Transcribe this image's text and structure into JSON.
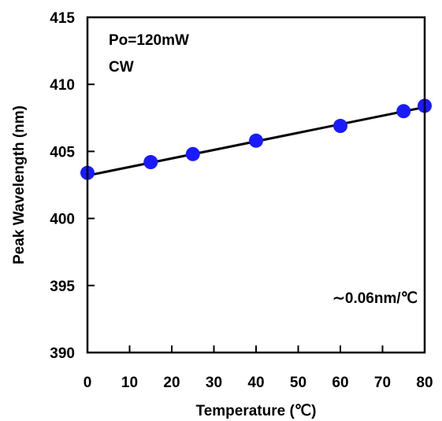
{
  "chart_data": {
    "type": "scatter",
    "title": "",
    "xlabel": "Temperature (℃)",
    "ylabel": "Peak Wavelength (nm)",
    "xlim": [
      0,
      80
    ],
    "ylim": [
      390,
      415
    ],
    "x_ticks": [
      0,
      10,
      20,
      30,
      40,
      50,
      60,
      70,
      80
    ],
    "y_ticks": [
      390,
      395,
      400,
      405,
      410,
      415
    ],
    "grid": false,
    "legend": "none",
    "series": [
      {
        "x": [
          0,
          15,
          25,
          40,
          60,
          75,
          80
        ],
        "y": [
          403.4,
          404.2,
          404.8,
          405.8,
          406.9,
          408.0,
          408.4
        ],
        "marker_color": "#1a1aff"
      }
    ],
    "fit_line": {
      "x": [
        0,
        80
      ],
      "y": [
        403.2,
        408.3
      ],
      "color": "#000000"
    },
    "annotations": {
      "condition_power": "Po=120mW",
      "condition_mode": "CW",
      "slope": "∼0.06nm/℃"
    }
  }
}
